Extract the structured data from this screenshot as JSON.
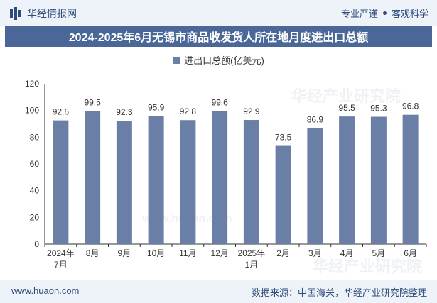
{
  "header": {
    "brand": "华经情报网",
    "right_items": [
      "专业严谨",
      "客观科学"
    ]
  },
  "title": "2024-2025年6月无锡市商品收发货人所在地月度进出口总额",
  "colors": {
    "bar": "#6a7fa6",
    "title_bg": "#4a6797",
    "brand": "#2f4b79"
  },
  "chart_data": {
    "type": "bar",
    "categories": [
      "2024年\n7月",
      "8月",
      "9月",
      "10月",
      "11月",
      "12月",
      "2025年\n1月",
      "2月",
      "3月",
      "4月",
      "5月",
      "6月"
    ],
    "series": [
      {
        "name": "进出口总额(亿美元)",
        "values": [
          92.6,
          99.5,
          92.3,
          95.9,
          92.8,
          99.6,
          92.9,
          73.5,
          86.9,
          95.5,
          95.3,
          96.8
        ]
      }
    ],
    "ylim": [
      0,
      120
    ],
    "yticks": [
      0,
      20,
      40,
      60,
      80,
      100,
      120
    ],
    "legend_position": "top-center"
  },
  "footer": {
    "website": "www.huaon.com",
    "source": "数据来源：中国海关，华经产业研究院整理"
  },
  "watermarks": [
    "华经产业研究院",
    "www.huaon.com"
  ]
}
